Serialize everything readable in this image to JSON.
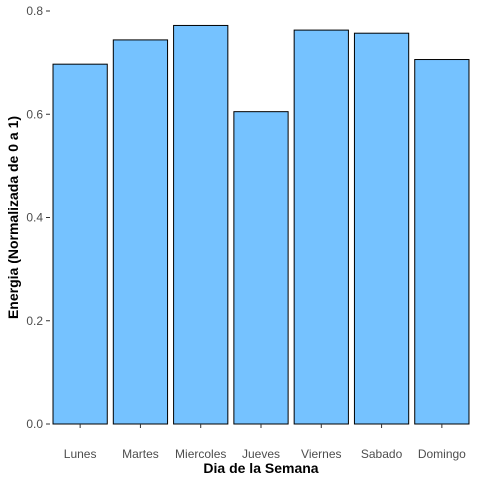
{
  "chart_data": {
    "type": "bar",
    "title": "",
    "xlabel": "Dia de la Semana",
    "ylabel": "Energia (Normalizada de 0 a 1)",
    "categories": [
      "Lunes",
      "Martes",
      "Miercoles",
      "Jueves",
      "Viernes",
      "Sabado",
      "Domingo"
    ],
    "values": [
      0.697,
      0.744,
      0.772,
      0.605,
      0.763,
      0.757,
      0.706
    ],
    "ylim": [
      0,
      0.8
    ],
    "yticks": [
      0.0,
      0.2,
      0.4,
      0.6,
      0.8
    ],
    "ytick_labels": [
      "0.0",
      "0.2",
      "0.4",
      "0.6",
      "0.8"
    ],
    "grid": false,
    "legend": "none",
    "colors": {
      "bar_fill": "#75C2FF",
      "bar_stroke": "#000000",
      "axis": "#333333",
      "tick_text": "#4d4d4d"
    }
  }
}
